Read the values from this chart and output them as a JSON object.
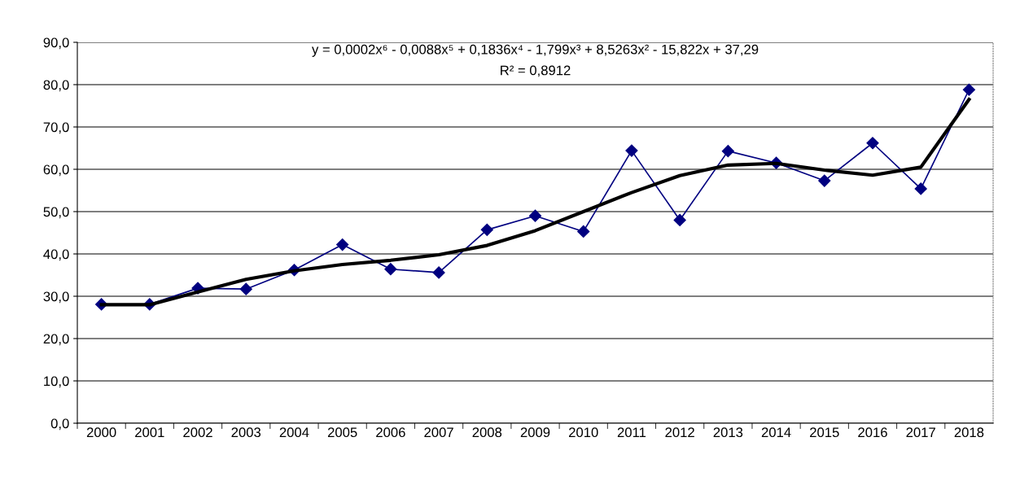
{
  "chart_data": {
    "type": "line",
    "categories": [
      "2000",
      "2001",
      "2002",
      "2003",
      "2004",
      "2005",
      "2006",
      "2007",
      "2008",
      "2009",
      "2010",
      "2011",
      "2012",
      "2013",
      "2014",
      "2015",
      "2016",
      "2017",
      "2018"
    ],
    "series": [
      {
        "color": "#000080",
        "marker": "diamond",
        "values": [
          28.1,
          28.1,
          31.9,
          31.7,
          36.2,
          42.2,
          36.4,
          35.6,
          45.7,
          49.0,
          45.3,
          64.4,
          48.0,
          64.3,
          61.5,
          57.3,
          66.2,
          55.4,
          78.8
        ]
      },
      {
        "color": "#000000",
        "marker": "none",
        "values": [
          28.0,
          28.0,
          31.0,
          34.0,
          36.0,
          37.5,
          38.5,
          39.8,
          42.0,
          45.5,
          50.0,
          54.5,
          58.5,
          61.0,
          61.4,
          59.8,
          58.6,
          60.5,
          76.5
        ]
      }
    ],
    "ylim": [
      0,
      90
    ],
    "yticks": [
      {
        "value": 0,
        "label": "0,0"
      },
      {
        "value": 10,
        "label": "10,0"
      },
      {
        "value": 20,
        "label": "20,0"
      },
      {
        "value": 30,
        "label": "30,0"
      },
      {
        "value": 40,
        "label": "40,0"
      },
      {
        "value": 50,
        "label": "50,0"
      },
      {
        "value": 60,
        "label": "60,0"
      },
      {
        "value": 70,
        "label": "70,0"
      },
      {
        "value": 80,
        "label": "80,0"
      },
      {
        "value": 90,
        "label": "90,0"
      }
    ],
    "grid": "y",
    "annotations": [
      "y = 0,0002x⁶ - 0,0088x⁵ + 0,1836x⁴ - 1,799x³ + 8,5263x² - 15,822x + 37,29",
      "R² = 0,8912"
    ]
  }
}
